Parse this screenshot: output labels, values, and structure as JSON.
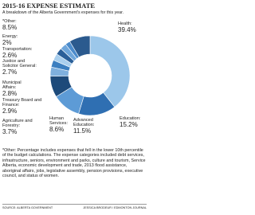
{
  "chart_data": {
    "type": "donut",
    "title": "2015-16 EXPENSE ESTIMATE",
    "subtitle": "A breakdown of the Alberta Government's expenses for this year.",
    "categories": [
      "Health:",
      "Education:",
      "Advanced Education:",
      "Human Services:",
      "Agriculture and Forestry:",
      "Treasury Board and Finance:",
      "Municipal Affairs:",
      "Justice and Solicitor General:",
      "Transportation:",
      "Energy:",
      "*Other:"
    ],
    "values": [
      39.4,
      15.2,
      11.5,
      8.6,
      3.7,
      2.9,
      2.8,
      2.7,
      2.6,
      2,
      8.5
    ],
    "value_labels": [
      "39.4%",
      "15.2%",
      "11.5%",
      "8.6%",
      "3.7%",
      "2.9%",
      "2.8%",
      "2.7%",
      "2.6%",
      "2%",
      "8.5%"
    ],
    "colors": [
      "#9cc7ea",
      "#2f6fb2",
      "#5d9bd6",
      "#1d4a7a",
      "#7fb0de",
      "#3c7fc0",
      "#a9cfee",
      "#2a5f99",
      "#6ea6db",
      "#4b8bcb",
      "#2b5a8e"
    ],
    "footnote": "*Other: Percentage includes expenses that fell in the lower 10th percentile of the budget calculations. The expense categories included debt services, infrastructure, seniors, environment and parks, culture and tourism, Service Alberta, economic development and trade, 2013 flood assistance, aboriginal affairs, jobs, legislative assembly, pension provisions, executive council, and status of women.",
    "source": "SOURCE: ALBERTA GOVERNMENT",
    "credit": "JESSICA BRODEUR / EDMONTON JOURNAL"
  }
}
